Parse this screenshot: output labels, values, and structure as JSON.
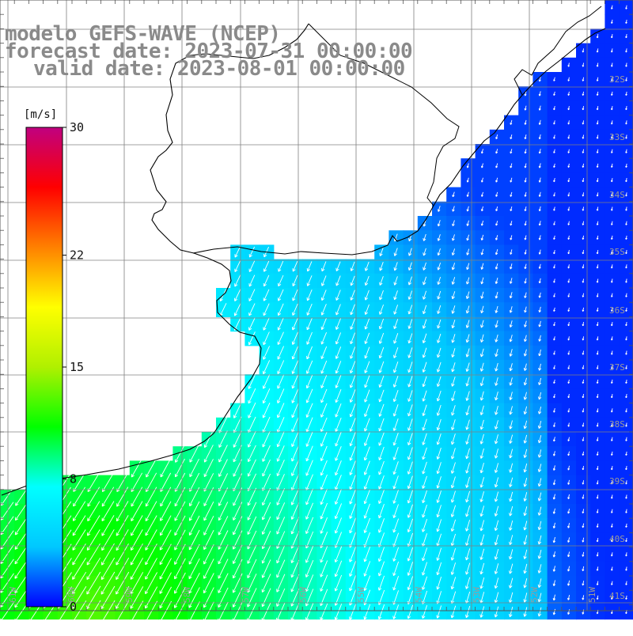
{
  "title": {
    "line1": "modelo GEFS-WAVE (NCEP)",
    "line2": "forecast date: 2023-07-31 00:00:00",
    "line3": "valid date: 2023-08-01 00:00:00"
  },
  "colorbar": {
    "unit": "[m/s]",
    "ticks": [
      {
        "value": 30,
        "label": "30"
      },
      {
        "value": 22,
        "label": "22"
      },
      {
        "value": 15,
        "label": "15"
      },
      {
        "value": 8,
        "label": "8"
      },
      {
        "value": 0,
        "label": "0"
      }
    ],
    "min": 0,
    "max": 30,
    "stops": [
      "#0000ff",
      "#00c8ff",
      "#00ffff",
      "#00ff00",
      "#b0f000",
      "#ffff00",
      "#ff8000",
      "#ff0000",
      "#c00080"
    ]
  },
  "axes": {
    "lat_labels": [
      "32S",
      "33S",
      "34S",
      "35S",
      "36S",
      "37S",
      "38S",
      "39S",
      "40S",
      "41S"
    ],
    "lon_labels": [
      "61W",
      "60W",
      "59W",
      "58W",
      "57W",
      "56W",
      "55W",
      "54W",
      "53W",
      "52W",
      "51W"
    ]
  },
  "chart_data": {
    "type": "heatmap",
    "variable": "wind speed",
    "unit": "m/s",
    "region": {
      "lat_range": [
        "41S",
        "31S"
      ],
      "lon_range": [
        "61W",
        "50W"
      ]
    },
    "wind_direction": "mostly from the northeast (arrows point to the southwest)"
  }
}
